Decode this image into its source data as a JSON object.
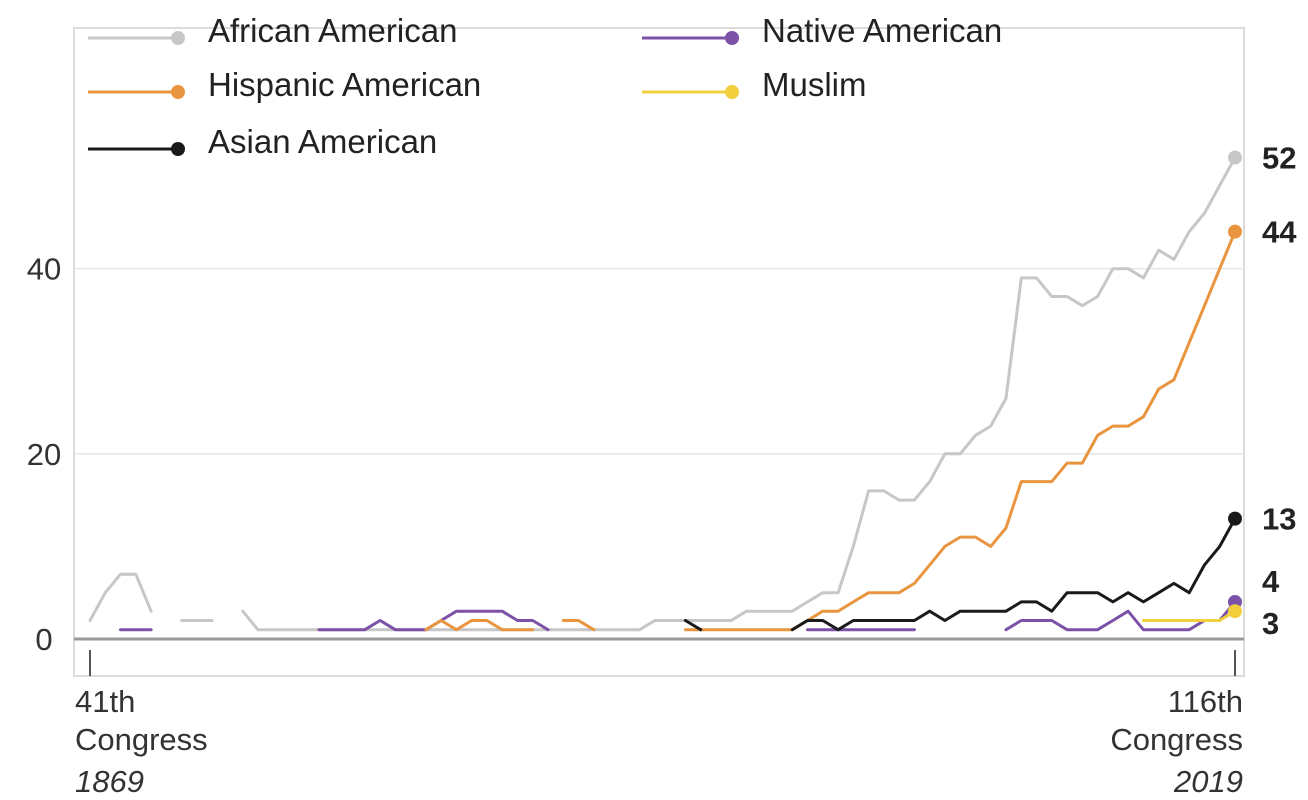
{
  "chart_data": {
    "type": "line",
    "title": "",
    "xlabel": "",
    "ylabel": "",
    "x_range": [
      41,
      116
    ],
    "ylim": [
      -4,
      66
    ],
    "y_ticks": [
      0,
      20,
      40
    ],
    "y_tick_labels": [
      "0",
      "20",
      "40"
    ],
    "grid": true,
    "legend_position": "top",
    "x_axis_labels": {
      "start": {
        "line1": "41th",
        "line2": "Congress",
        "year": "1869"
      },
      "end": {
        "line1": "116th",
        "line2": "Congress",
        "year": "2019"
      }
    },
    "series": [
      {
        "name": "African American",
        "color": "#c7c7c7",
        "end_label": "52",
        "segments": [
          [
            [
              41,
              2
            ],
            [
              42,
              5
            ],
            [
              43,
              7
            ],
            [
              44,
              7
            ],
            [
              45,
              3
            ]
          ],
          [
            [
              47,
              2
            ],
            [
              48,
              2
            ],
            [
              49,
              2
            ]
          ],
          [
            [
              51,
              3
            ],
            [
              52,
              1
            ],
            [
              53,
              1
            ],
            [
              54,
              1
            ],
            [
              55,
              1
            ],
            [
              56,
              1
            ],
            [
              57,
              1
            ],
            [
              58,
              1
            ],
            [
              59,
              1
            ],
            [
              60,
              1
            ],
            [
              61,
              1
            ],
            [
              62,
              1
            ],
            [
              63,
              1
            ],
            [
              64,
              1
            ],
            [
              65,
              1
            ],
            [
              66,
              1
            ],
            [
              67,
              1
            ],
            [
              68,
              1
            ],
            [
              69,
              1
            ],
            [
              70,
              1
            ],
            [
              71,
              1
            ],
            [
              72,
              1
            ],
            [
              73,
              1
            ],
            [
              74,
              1
            ],
            [
              75,
              1
            ],
            [
              76,
              1
            ],
            [
              77,
              1
            ],
            [
              78,
              2
            ],
            [
              79,
              2
            ],
            [
              80,
              2
            ],
            [
              81,
              2
            ],
            [
              82,
              2
            ],
            [
              83,
              2
            ],
            [
              84,
              3
            ],
            [
              85,
              3
            ],
            [
              86,
              3
            ],
            [
              87,
              3
            ],
            [
              88,
              4
            ],
            [
              89,
              5
            ],
            [
              90,
              5
            ],
            [
              91,
              10
            ],
            [
              92,
              16
            ],
            [
              93,
              16
            ],
            [
              94,
              15
            ],
            [
              95,
              15
            ],
            [
              96,
              17
            ],
            [
              97,
              20
            ],
            [
              98,
              20
            ],
            [
              99,
              22
            ],
            [
              100,
              23
            ],
            [
              101,
              26
            ],
            [
              102,
              39
            ],
            [
              103,
              39
            ],
            [
              104,
              37
            ],
            [
              105,
              37
            ],
            [
              106,
              36
            ],
            [
              107,
              37
            ],
            [
              108,
              40
            ],
            [
              109,
              40
            ],
            [
              110,
              39
            ],
            [
              111,
              42
            ],
            [
              112,
              41
            ],
            [
              113,
              44
            ],
            [
              114,
              46
            ],
            [
              115,
              49
            ],
            [
              116,
              52
            ]
          ]
        ]
      },
      {
        "name": "Native American",
        "color": "#7b52a8",
        "end_label": "4",
        "segments": [
          [
            [
              43,
              1
            ],
            [
              44,
              1
            ],
            [
              45,
              1
            ]
          ],
          [
            [
              56,
              1
            ],
            [
              57,
              1
            ],
            [
              58,
              1
            ],
            [
              59,
              1
            ],
            [
              60,
              2
            ],
            [
              61,
              1
            ],
            [
              62,
              1
            ],
            [
              63,
              1
            ],
            [
              64,
              2
            ],
            [
              65,
              3
            ],
            [
              66,
              3
            ],
            [
              67,
              3
            ],
            [
              68,
              3
            ],
            [
              69,
              2
            ],
            [
              70,
              2
            ],
            [
              71,
              1
            ]
          ],
          [
            [
              88,
              1
            ],
            [
              89,
              1
            ],
            [
              90,
              1
            ],
            [
              91,
              1
            ],
            [
              92,
              1
            ],
            [
              93,
              1
            ],
            [
              94,
              1
            ],
            [
              95,
              1
            ]
          ],
          [
            [
              101,
              1
            ],
            [
              102,
              2
            ],
            [
              103,
              2
            ],
            [
              104,
              2
            ],
            [
              105,
              1
            ],
            [
              106,
              1
            ],
            [
              107,
              1
            ],
            [
              108,
              2
            ],
            [
              109,
              3
            ],
            [
              110,
              1
            ],
            [
              111,
              1
            ],
            [
              112,
              1
            ],
            [
              113,
              1
            ],
            [
              114,
              2
            ],
            [
              115,
              2
            ],
            [
              116,
              4
            ]
          ]
        ]
      },
      {
        "name": "Hispanic American",
        "color": "#e9953f",
        "end_label": "44",
        "segments": [
          [
            [
              63,
              1
            ],
            [
              64,
              2
            ],
            [
              65,
              1
            ],
            [
              66,
              2
            ],
            [
              67,
              2
            ],
            [
              68,
              1
            ],
            [
              69,
              1
            ],
            [
              70,
              1
            ]
          ],
          [
            [
              72,
              2
            ],
            [
              73,
              2
            ],
            [
              74,
              1
            ]
          ],
          [
            [
              80,
              1
            ],
            [
              81,
              1
            ],
            [
              82,
              1
            ],
            [
              83,
              1
            ],
            [
              84,
              1
            ],
            [
              85,
              1
            ],
            [
              86,
              1
            ],
            [
              87,
              1
            ],
            [
              88,
              2
            ],
            [
              89,
              3
            ],
            [
              90,
              3
            ],
            [
              91,
              4
            ],
            [
              92,
              5
            ],
            [
              93,
              5
            ],
            [
              94,
              5
            ],
            [
              95,
              6
            ],
            [
              96,
              8
            ],
            [
              97,
              10
            ],
            [
              98,
              11
            ],
            [
              99,
              11
            ],
            [
              100,
              10
            ],
            [
              101,
              12
            ],
            [
              102,
              17
            ],
            [
              103,
              17
            ],
            [
              104,
              17
            ],
            [
              105,
              19
            ],
            [
              106,
              19
            ],
            [
              107,
              22
            ],
            [
              108,
              23
            ],
            [
              109,
              23
            ],
            [
              110,
              24
            ],
            [
              111,
              27
            ],
            [
              112,
              28
            ],
            [
              113,
              32
            ],
            [
              114,
              36
            ],
            [
              115,
              40
            ],
            [
              116,
              44
            ]
          ]
        ]
      },
      {
        "name": "Muslim",
        "color": "#f2cf3c",
        "end_label": "3",
        "segments": [
          [
            [
              110,
              2
            ],
            [
              111,
              2
            ],
            [
              112,
              2
            ],
            [
              113,
              2
            ],
            [
              114,
              2
            ],
            [
              115,
              2
            ],
            [
              116,
              3
            ]
          ]
        ]
      },
      {
        "name": "Asian American",
        "color": "#1a1a1a",
        "end_label": "13",
        "segments": [
          [
            [
              80,
              2
            ],
            [
              81,
              1
            ]
          ],
          [
            [
              87,
              1
            ],
            [
              88,
              2
            ],
            [
              89,
              2
            ],
            [
              90,
              1
            ],
            [
              91,
              2
            ],
            [
              92,
              2
            ],
            [
              93,
              2
            ],
            [
              94,
              2
            ],
            [
              95,
              2
            ],
            [
              96,
              3
            ],
            [
              97,
              2
            ],
            [
              98,
              3
            ],
            [
              99,
              3
            ],
            [
              100,
              3
            ],
            [
              101,
              3
            ],
            [
              102,
              4
            ],
            [
              103,
              4
            ],
            [
              104,
              3
            ],
            [
              105,
              5
            ],
            [
              106,
              5
            ],
            [
              107,
              5
            ],
            [
              108,
              4
            ],
            [
              109,
              5
            ],
            [
              110,
              4
            ],
            [
              111,
              5
            ],
            [
              112,
              6
            ],
            [
              113,
              5
            ],
            [
              114,
              8
            ],
            [
              115,
              10
            ],
            [
              116,
              13
            ]
          ]
        ]
      }
    ],
    "legend_order": [
      "African American",
      "Native American",
      "Hispanic American",
      "Muslim",
      "Asian American"
    ]
  }
}
